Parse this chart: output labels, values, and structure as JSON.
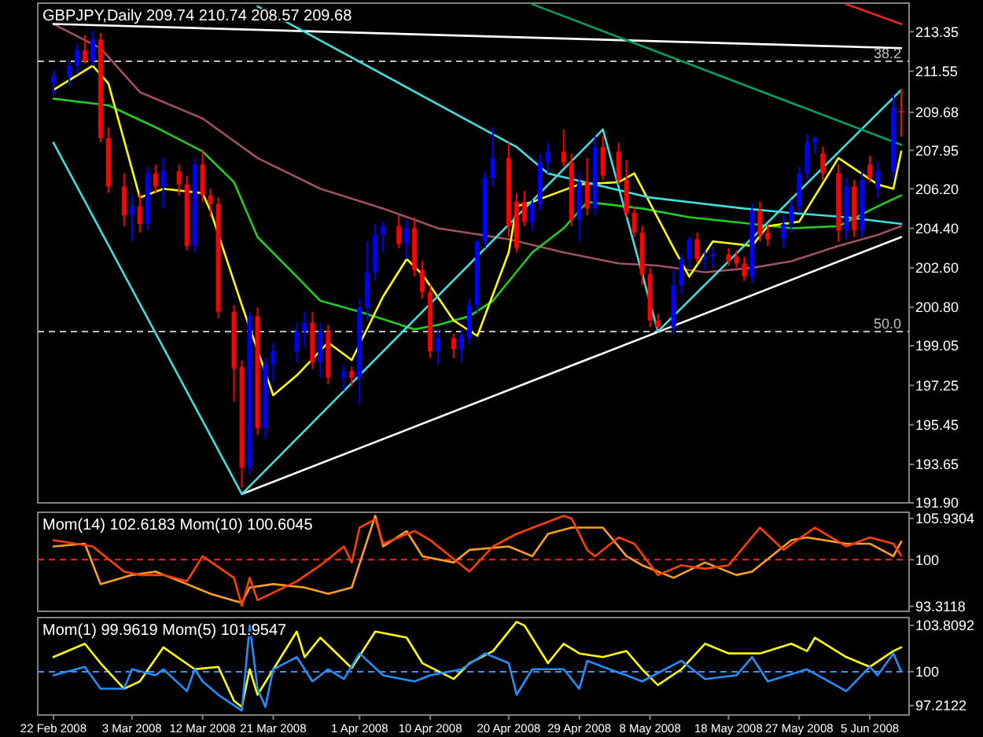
{
  "chart_data": [
    {
      "type": "candlestick",
      "title": "GBPJPY,Daily 209.74 210.74 208.57 209.68",
      "tick_labels": "y",
      "xlim": [
        "2008-02-20",
        "2008-06-10"
      ],
      "ylim": [
        191.9,
        214.65
      ],
      "yticks": [
        213.35,
        211.55,
        209.68,
        207.95,
        {
          "value": 206.2,
          "label": "206.20"
        },
        {
          "value": 204.4,
          "label": "204.40"
        },
        {
          "value": 202.6,
          "label": "202.60"
        },
        {
          "value": 200.8,
          "label": "200.80"
        },
        199.05,
        197.25,
        195.45,
        193.65,
        {
          "value": 191.9,
          "label": "191.90"
        }
      ],
      "ref_lines": [
        {
          "axis": "y",
          "value": 212.0,
          "color": "#c0c0c0",
          "line_style": "dashed"
        },
        {
          "axis": "y",
          "value": 199.7,
          "color": "#c0c0c0",
          "line_style": "dashed"
        }
      ],
      "annotations": [
        {
          "text": "38.2",
          "x": "2008-06-09",
          "y": 212.0
        },
        {
          "text": "50.0",
          "x": "2008-06-09",
          "y": 199.7
        }
      ],
      "x": [
        "2008-02-22",
        "2008-02-24",
        "2008-02-25",
        "2008-02-26",
        "2008-02-27",
        "2008-02-28",
        "2008-02-29",
        "2008-03-02",
        "2008-03-03",
        "2008-03-04",
        "2008-03-05",
        "2008-03-06",
        "2008-03-07",
        "2008-03-09",
        "2008-03-10",
        "2008-03-11",
        "2008-03-12",
        "2008-03-13",
        "2008-03-14",
        "2008-03-16",
        "2008-03-17",
        "2008-03-18",
        "2008-03-19",
        "2008-03-20",
        "2008-03-21",
        "2008-03-24",
        "2008-03-25",
        "2008-03-26",
        "2008-03-27",
        "2008-03-28",
        "2008-03-30",
        "2008-03-31",
        "2008-04-01",
        "2008-04-02",
        "2008-04-03",
        "2008-04-04",
        "2008-04-06",
        "2008-04-07",
        "2008-04-08",
        "2008-04-09",
        "2008-04-10",
        "2008-04-11",
        "2008-04-13",
        "2008-04-14",
        "2008-04-15",
        "2008-04-16",
        "2008-04-17",
        "2008-04-18",
        "2008-04-20",
        "2008-04-21",
        "2008-04-22",
        "2008-04-23",
        "2008-04-24",
        "2008-04-25",
        "2008-04-27",
        "2008-04-28",
        "2008-04-29",
        "2008-04-30",
        "2008-05-01",
        "2008-05-02",
        "2008-05-04",
        "2008-05-05",
        "2008-05-06",
        "2008-05-07",
        "2008-05-08",
        "2008-05-09",
        "2008-05-11",
        "2008-05-12",
        "2008-05-13",
        "2008-05-14",
        "2008-05-15",
        "2008-05-16",
        "2008-05-18",
        "2008-05-19",
        "2008-05-20",
        "2008-05-21",
        "2008-05-22",
        "2008-05-23",
        "2008-05-25",
        "2008-05-26",
        "2008-05-27",
        "2008-05-28",
        "2008-05-29",
        "2008-05-30",
        "2008-06-01",
        "2008-06-02",
        "2008-06-03",
        "2008-06-04",
        "2008-06-05",
        "2008-06-06",
        "2008-06-08",
        "2008-06-09"
      ],
      "ohlc": [
        [
          211.0,
          211.6,
          210.5,
          211.3
        ],
        [
          211.3,
          212.0,
          210.9,
          211.8
        ],
        [
          211.8,
          212.8,
          211.4,
          212.5
        ],
        [
          212.5,
          213.2,
          211.9,
          212.0
        ],
        [
          212.0,
          213.4,
          211.8,
          213.0
        ],
        [
          213.0,
          213.3,
          208.3,
          208.5
        ],
        [
          208.5,
          209.0,
          206.0,
          206.3
        ],
        [
          206.3,
          206.9,
          204.5,
          205.0
        ],
        [
          205.0,
          205.9,
          203.8,
          205.4
        ],
        [
          205.4,
          206.0,
          204.2,
          204.6
        ],
        [
          204.6,
          207.2,
          204.3,
          206.9
        ],
        [
          206.9,
          207.3,
          206.0,
          206.3
        ],
        [
          206.3,
          207.6,
          205.3,
          207.0
        ],
        [
          207.0,
          207.3,
          205.9,
          206.4
        ],
        [
          206.4,
          206.8,
          203.4,
          203.6
        ],
        [
          203.6,
          207.6,
          203.3,
          207.3
        ],
        [
          207.3,
          208.0,
          205.6,
          205.9
        ],
        [
          205.9,
          206.2,
          204.9,
          205.5
        ],
        [
          205.5,
          205.8,
          200.3,
          200.6
        ],
        [
          200.6,
          200.9,
          196.5,
          198.0
        ],
        [
          198.1,
          198.4,
          192.6,
          193.5
        ],
        [
          193.5,
          200.6,
          193.2,
          200.4
        ],
        [
          200.4,
          200.8,
          195.0,
          195.3
        ],
        [
          195.3,
          198.5,
          194.8,
          198.2
        ],
        [
          198.2,
          199.2,
          197.4,
          198.8
        ],
        [
          198.8,
          200.1,
          198.3,
          199.7
        ],
        [
          199.7,
          200.6,
          199.0,
          200.1
        ],
        [
          200.1,
          200.6,
          198.0,
          198.3
        ],
        [
          198.3,
          200.1,
          197.6,
          199.7
        ],
        [
          199.7,
          200.0,
          197.3,
          197.6
        ],
        [
          197.6,
          198.2,
          197.0,
          197.9
        ],
        [
          197.9,
          198.1,
          197.2,
          197.6
        ],
        [
          197.6,
          201.2,
          196.4,
          200.8
        ],
        [
          200.8,
          203.8,
          200.2,
          202.4
        ],
        [
          202.4,
          204.6,
          202.0,
          204.1
        ],
        [
          204.1,
          204.7,
          203.3,
          204.5
        ],
        [
          204.5,
          205.0,
          203.5,
          203.7
        ],
        [
          203.7,
          204.8,
          203.0,
          204.4
        ],
        [
          204.4,
          204.9,
          202.2,
          202.5
        ],
        [
          202.5,
          202.9,
          201.2,
          201.5
        ],
        [
          201.5,
          201.8,
          198.5,
          198.8
        ],
        [
          198.8,
          199.8,
          198.2,
          199.4
        ],
        [
          199.4,
          199.6,
          198.5,
          198.9
        ],
        [
          198.9,
          199.8,
          198.3,
          199.5
        ],
        [
          199.4,
          201.2,
          199.1,
          200.9
        ],
        [
          200.9,
          203.9,
          200.6,
          203.8
        ],
        [
          203.8,
          207.0,
          203.5,
          206.7
        ],
        [
          206.7,
          209.0,
          206.3,
          207.6
        ],
        [
          207.6,
          208.3,
          204.0,
          204.5
        ],
        [
          205.6,
          206.0,
          203.3,
          203.5
        ],
        [
          205.6,
          206.1,
          204.5,
          204.7
        ],
        [
          204.7,
          205.7,
          204.3,
          205.5
        ],
        [
          205.5,
          207.8,
          205.2,
          207.4
        ],
        [
          207.4,
          208.3,
          206.9,
          207.9
        ],
        [
          207.9,
          208.9,
          207.2,
          207.4
        ],
        [
          207.4,
          207.8,
          204.5,
          204.8
        ],
        [
          204.8,
          207.0,
          203.8,
          206.5
        ],
        [
          206.5,
          207.6,
          205.0,
          205.3
        ],
        [
          205.3,
          208.6,
          205.0,
          208.1
        ],
        [
          208.1,
          208.6,
          206.6,
          206.8
        ],
        [
          207.9,
          208.3,
          206.4,
          206.6
        ],
        [
          206.6,
          207.5,
          204.9,
          205.1
        ],
        [
          205.1,
          205.4,
          204.0,
          204.2
        ],
        [
          204.2,
          204.5,
          201.8,
          202.3
        ],
        [
          202.3,
          202.6,
          199.9,
          200.2
        ],
        [
          200.2,
          200.5,
          199.8,
          199.9
        ],
        [
          199.9,
          202.5,
          199.6,
          201.8
        ],
        [
          201.8,
          203.2,
          201.4,
          203.0
        ],
        [
          203.0,
          204.0,
          202.6,
          203.9
        ],
        [
          203.9,
          204.2,
          202.8,
          203.0
        ],
        [
          203.0,
          203.4,
          202.5,
          203.1
        ],
        [
          203.1,
          203.6,
          202.6,
          203.2
        ],
        [
          203.2,
          203.5,
          202.7,
          202.9
        ],
        [
          203.1,
          203.4,
          202.6,
          202.8
        ],
        [
          202.8,
          203.1,
          202.0,
          202.2
        ],
        [
          202.2,
          205.5,
          201.9,
          205.2
        ],
        [
          205.2,
          205.6,
          203.8,
          204.1
        ],
        [
          204.2,
          204.6,
          203.6,
          203.9
        ],
        [
          203.9,
          205.0,
          203.5,
          204.6
        ],
        [
          204.6,
          205.7,
          204.2,
          205.4
        ],
        [
          205.4,
          207.2,
          205.1,
          206.9
        ],
        [
          206.9,
          208.7,
          206.6,
          208.3
        ],
        [
          208.3,
          208.6,
          207.8,
          208.5
        ],
        [
          207.8,
          208.1,
          206.6,
          206.9
        ],
        [
          206.9,
          207.3,
          203.8,
          204.3
        ],
        [
          204.3,
          206.7,
          203.9,
          206.3
        ],
        [
          206.3,
          206.6,
          204.0,
          204.3
        ],
        [
          204.3,
          207.0,
          204.0,
          206.6
        ],
        [
          207.3,
          207.7,
          206.5,
          206.7
        ],
        [
          206.2,
          207.4,
          205.8,
          207.0
        ],
        [
          207.0,
          210.5,
          206.6,
          209.9
        ],
        [
          209.74,
          210.74,
          208.57,
          209.68
        ]
      ],
      "colors": [
        "#0000ff",
        "#0000ff",
        "#0000ff",
        "#ff0000",
        "#0000ff",
        "#ff0000",
        "#ff0000",
        "#ff0000",
        "#0000ff",
        "#ff0000",
        "#0000ff",
        "#ff0000",
        "#0000ff",
        "#ff0000",
        "#ff0000",
        "#0000ff",
        "#ff0000",
        "#ff0000",
        "#ff0000",
        "#ff0000",
        "#ff0000",
        "#0000ff",
        "#ff0000",
        "#0000ff",
        "#0000ff",
        "#0000ff",
        "#0000ff",
        "#ff0000",
        "#0000ff",
        "#ff0000",
        "#0000ff",
        "#ff0000",
        "#0000ff",
        "#0000ff",
        "#0000ff",
        "#0000ff",
        "#ff0000",
        "#0000ff",
        "#ff0000",
        "#ff0000",
        "#ff0000",
        "#0000ff",
        "#ff0000",
        "#0000ff",
        "#0000ff",
        "#0000ff",
        "#0000ff",
        "#0000ff",
        "#ff0000",
        "#ff0000",
        "#ff0000",
        "#0000ff",
        "#0000ff",
        "#0000ff",
        "#ff0000",
        "#ff0000",
        "#0000ff",
        "#ff0000",
        "#0000ff",
        "#ff0000",
        "#ff0000",
        "#ff0000",
        "#ff0000",
        "#ff0000",
        "#ff0000",
        "#ff0000",
        "#0000ff",
        "#0000ff",
        "#0000ff",
        "#ff0000",
        "#0000ff",
        "#0000ff",
        "#ff0000",
        "#ff0000",
        "#ff0000",
        "#0000ff",
        "#ff0000",
        "#ff0000",
        "#0000ff",
        "#0000ff",
        "#0000ff",
        "#0000ff",
        "#0000ff",
        "#ff0000",
        "#ff0000",
        "#0000ff",
        "#ff0000",
        "#0000ff",
        "#ff0000",
        "#0000ff",
        "#0000ff",
        "#ff0000"
      ],
      "series": [
        {
          "type": "line",
          "color": "#a0505f",
          "x": [
            "2008-02-22",
            "2008-02-28",
            "2008-03-04",
            "2008-03-12",
            "2008-03-19",
            "2008-03-27",
            "2008-04-04",
            "2008-04-11",
            "2008-04-20",
            "2008-04-27",
            "2008-05-04",
            "2008-05-09",
            "2008-05-15",
            "2008-05-21",
            "2008-05-26",
            "2008-06-01",
            "2008-06-06",
            "2008-06-09"
          ],
          "values": [
            213.7,
            212.6,
            210.6,
            209.4,
            207.6,
            206.2,
            205.3,
            204.4,
            203.9,
            203.3,
            202.8,
            202.7,
            202.4,
            202.6,
            202.9,
            203.6,
            204.1,
            204.5
          ]
        },
        {
          "type": "line",
          "color": "#20d020",
          "x": [
            "2008-02-22",
            "2008-02-29",
            "2008-03-06",
            "2008-03-12",
            "2008-03-16",
            "2008-03-19",
            "2008-03-24",
            "2008-03-27",
            "2008-04-01",
            "2008-04-08",
            "2008-04-11",
            "2008-04-15",
            "2008-04-18",
            "2008-04-23",
            "2008-04-27",
            "2008-04-30",
            "2008-05-07",
            "2008-05-13",
            "2008-05-21",
            "2008-05-26",
            "2008-06-01",
            "2008-06-06",
            "2008-06-09"
          ],
          "values": [
            210.3,
            210.0,
            209.0,
            207.9,
            206.5,
            204.0,
            202.2,
            201.1,
            200.6,
            199.8,
            200.0,
            200.4,
            201.1,
            203.3,
            204.4,
            205.6,
            205.3,
            204.9,
            204.6,
            204.4,
            204.5,
            205.4,
            205.9
          ]
        },
        {
          "type": "line",
          "color": "#ffff00",
          "x": [
            "2008-02-22",
            "2008-02-27",
            "2008-02-29",
            "2008-03-04",
            "2008-03-07",
            "2008-03-12",
            "2008-03-13",
            "2008-03-17",
            "2008-03-21",
            "2008-03-24",
            "2008-03-28",
            "2008-03-31",
            "2008-04-04",
            "2008-04-07",
            "2008-04-09",
            "2008-04-13",
            "2008-04-16",
            "2008-04-20",
            "2008-04-21",
            "2008-04-23",
            "2008-04-29",
            "2008-05-04",
            "2008-05-06",
            "2008-05-11",
            "2008-05-13",
            "2008-05-16",
            "2008-05-21",
            "2008-05-23",
            "2008-05-27",
            "2008-06-01",
            "2008-06-06",
            "2008-06-08",
            "2008-06-09"
          ],
          "values": [
            210.7,
            211.8,
            211.0,
            205.8,
            206.2,
            206.0,
            205.2,
            200.9,
            196.8,
            197.7,
            199.2,
            198.4,
            201.3,
            203.0,
            202.3,
            200.2,
            199.5,
            203.3,
            205.4,
            205.6,
            206.4,
            206.5,
            206.9,
            203.5,
            202.2,
            203.8,
            203.6,
            204.5,
            204.7,
            207.6,
            206.4,
            206.2,
            207.9
          ]
        },
        {
          "type": "line",
          "color": "#ffffff",
          "x": [
            "2008-03-17",
            "2008-06-09"
          ],
          "values": [
            192.3,
            204.0
          ]
        },
        {
          "type": "line",
          "color": "#ffffff",
          "x": [
            "2008-02-22",
            "2008-06-09"
          ],
          "values": [
            213.7,
            212.6
          ]
        },
        {
          "type": "line",
          "color": "#40e0e0",
          "x": [
            "2008-03-19",
            "2008-04-21",
            "2008-04-25",
            "2008-05-08",
            "2008-05-20",
            "2008-05-26",
            "2008-06-02",
            "2008-06-09"
          ],
          "values": [
            214.5,
            208.1,
            206.9,
            205.8,
            205.3,
            205.1,
            204.9,
            204.6
          ]
        },
        {
          "type": "line",
          "color": "#40e0e0",
          "x": [
            "2008-02-22",
            "2008-03-17",
            "2008-05-02",
            "2008-05-09",
            "2008-06-09"
          ],
          "values": [
            208.3,
            192.3,
            208.9,
            199.7,
            210.7
          ]
        },
        {
          "type": "line",
          "color": "#00a060",
          "x": [
            "2008-04-23",
            "2008-06-09"
          ],
          "values": [
            214.6,
            208.2
          ]
        },
        {
          "type": "line",
          "color": "#ff2020",
          "x": [
            "2008-06-02",
            "2008-06-09"
          ],
          "values": [
            214.6,
            213.7
          ]
        }
      ]
    },
    {
      "type": "line",
      "title": "Mom(14) 102.6183 Mom(10) 100.6045",
      "tick_labels": "y",
      "xlim": [
        "2008-02-20",
        "2008-06-10"
      ],
      "ylim": [
        92.6,
        106.8
      ],
      "yticks": [
        105.9304,
        100,
        93.3118
      ],
      "ref_lines": [
        {
          "axis": "y",
          "value": 100,
          "color": "#ff2020",
          "line_style": "dashed"
        }
      ],
      "series": [
        {
          "color": "#ffa020",
          "x": [
            "2008-02-22",
            "2008-02-26",
            "2008-02-28",
            "2008-03-03",
            "2008-03-06",
            "2008-03-10",
            "2008-03-13",
            "2008-03-17",
            "2008-03-18",
            "2008-03-21",
            "2008-03-25",
            "2008-03-28",
            "2008-03-31",
            "2008-04-03",
            "2008-04-04",
            "2008-04-07",
            "2008-04-09",
            "2008-04-13",
            "2008-04-15",
            "2008-04-20",
            "2008-04-23",
            "2008-04-25",
            "2008-04-28",
            "2008-05-02",
            "2008-05-05",
            "2008-05-07",
            "2008-05-11",
            "2008-05-15",
            "2008-05-19",
            "2008-05-21",
            "2008-05-26",
            "2008-05-28",
            "2008-06-02",
            "2008-06-05",
            "2008-06-08",
            "2008-06-09"
          ],
          "values": [
            101.9,
            102.3,
            96.5,
            97.8,
            98.3,
            96.5,
            95.1,
            93.8,
            96.0,
            96.5,
            96.0,
            95.1,
            96.0,
            106.3,
            101.9,
            104.1,
            100.5,
            99.6,
            101.4,
            101.9,
            100.5,
            103.7,
            104.6,
            104.6,
            100.5,
            99.2,
            97.4,
            99.6,
            97.8,
            98.3,
            102.8,
            103.2,
            102.3,
            102.3,
            100.5,
            102.6
          ]
        },
        {
          "color": "#ff4000",
          "x": [
            "2008-02-22",
            "2008-02-27",
            "2008-03-02",
            "2008-03-04",
            "2008-03-07",
            "2008-03-10",
            "2008-03-12",
            "2008-03-16",
            "2008-03-17",
            "2008-03-18",
            "2008-03-19",
            "2008-03-24",
            "2008-03-27",
            "2008-03-30",
            "2008-03-31",
            "2008-04-01",
            "2008-04-03",
            "2008-04-04",
            "2008-04-08",
            "2008-04-10",
            "2008-04-15",
            "2008-04-18",
            "2008-04-21",
            "2008-04-27",
            "2008-04-28",
            "2008-04-30",
            "2008-05-01",
            "2008-05-04",
            "2008-05-06",
            "2008-05-09",
            "2008-05-12",
            "2008-05-15",
            "2008-05-18",
            "2008-05-22",
            "2008-05-25",
            "2008-05-29",
            "2008-06-02",
            "2008-06-05",
            "2008-06-08",
            "2008-06-09"
          ],
          "values": [
            102.8,
            101.9,
            98.3,
            97.8,
            97.8,
            96.9,
            100.5,
            97.4,
            93.4,
            97.4,
            94.2,
            96.9,
            99.2,
            101.9,
            99.6,
            104.6,
            105.8,
            102.3,
            104.1,
            102.8,
            98.3,
            101.9,
            103.7,
            106.3,
            105.9,
            101.4,
            100.5,
            103.2,
            102.3,
            97.8,
            99.2,
            98.7,
            99.2,
            104.6,
            101.4,
            104.6,
            101.9,
            103.2,
            102.3,
            100.6
          ]
        }
      ]
    },
    {
      "type": "line",
      "title": "Mom(1) 99.9619 Mom(5) 101.9547",
      "xlim": [
        "2008-02-20",
        "2008-06-10"
      ],
      "ylim": [
        96.44,
        104.45
      ],
      "yticks": [
        103.8092,
        100,
        97.2122
      ],
      "xticks": [
        {
          "value": "2008-02-22",
          "label": "22 Feb 2008"
        },
        {
          "value": "2008-03-03",
          "label": "3 Mar 2008"
        },
        {
          "value": "2008-03-12",
          "label": "12 Mar 2008"
        },
        {
          "value": "2008-03-21",
          "label": "21 Mar 2008"
        },
        {
          "value": "2008-04-01",
          "label": "1 Apr 2008"
        },
        {
          "value": "2008-04-10",
          "label": "10 Apr 2008"
        },
        {
          "value": "2008-04-20",
          "label": "20 Apr 2008"
        },
        {
          "value": "2008-04-29",
          "label": "29 Apr 2008"
        },
        {
          "value": "2008-05-08",
          "label": "8 May 2008"
        },
        {
          "value": "2008-05-18",
          "label": "18 May 2008"
        },
        {
          "value": "2008-05-27",
          "label": "27 May 2008"
        },
        {
          "value": "2008-06-05",
          "label": "5 Jun 2008"
        }
      ],
      "ref_lines": [
        {
          "axis": "y",
          "value": 100,
          "color": "#4090ff",
          "line_style": "dashed"
        }
      ],
      "series": [
        {
          "color": "#ffff00",
          "x": [
            "2008-02-22",
            "2008-02-26",
            "2008-02-28",
            "2008-03-02",
            "2008-03-04",
            "2008-03-07",
            "2008-03-11",
            "2008-03-14",
            "2008-03-16",
            "2008-03-17",
            "2008-03-18",
            "2008-03-19",
            "2008-03-24",
            "2008-03-25",
            "2008-03-27",
            "2008-03-31",
            "2008-04-03",
            "2008-04-07",
            "2008-04-09",
            "2008-04-13",
            "2008-04-15",
            "2008-04-18",
            "2008-04-21",
            "2008-04-22",
            "2008-04-25",
            "2008-04-27",
            "2008-04-29",
            "2008-05-02",
            "2008-05-05",
            "2008-05-07",
            "2008-05-09",
            "2008-05-12",
            "2008-05-15",
            "2008-05-18",
            "2008-05-22",
            "2008-05-26",
            "2008-05-28",
            "2008-05-29",
            "2008-06-02",
            "2008-06-05",
            "2008-06-08",
            "2008-06-09"
          ],
          "values": [
            101.2,
            102.3,
            100.7,
            98.6,
            99.2,
            102.0,
            100.2,
            100.4,
            97.6,
            97.1,
            100.2,
            98.1,
            103.3,
            101.2,
            102.8,
            100.3,
            103.3,
            102.8,
            100.7,
            99.4,
            100.7,
            101.7,
            104.1,
            103.8,
            100.7,
            102.3,
            101.5,
            101.2,
            101.7,
            100.2,
            98.9,
            100.2,
            102.3,
            101.5,
            101.5,
            102.3,
            101.7,
            102.8,
            101.2,
            100.4,
            101.7,
            102.0
          ]
        },
        {
          "color": "#2090ff",
          "x": [
            "2008-02-22",
            "2008-02-26",
            "2008-02-28",
            "2008-03-02",
            "2008-03-03",
            "2008-03-06",
            "2008-03-07",
            "2008-03-10",
            "2008-03-11",
            "2008-03-12",
            "2008-03-14",
            "2008-03-17",
            "2008-03-18",
            "2008-03-19",
            "2008-03-20",
            "2008-03-21",
            "2008-03-24",
            "2008-03-26",
            "2008-03-28",
            "2008-03-30",
            "2008-04-01",
            "2008-04-04",
            "2008-04-08",
            "2008-04-10",
            "2008-04-14",
            "2008-04-17",
            "2008-04-20",
            "2008-04-21",
            "2008-04-23",
            "2008-04-27",
            "2008-04-29",
            "2008-04-30",
            "2008-05-02",
            "2008-05-05",
            "2008-05-07",
            "2008-05-12",
            "2008-05-15",
            "2008-05-19",
            "2008-05-21",
            "2008-05-23",
            "2008-05-28",
            "2008-06-02",
            "2008-06-05",
            "2008-06-06",
            "2008-06-08",
            "2008-06-09"
          ],
          "values": [
            99.7,
            100.4,
            98.6,
            98.6,
            100.2,
            99.7,
            100.2,
            98.4,
            100.2,
            99.2,
            98.1,
            96.8,
            103.8,
            98.6,
            97.1,
            100.2,
            101.2,
            99.2,
            100.2,
            99.4,
            101.5,
            99.7,
            99.2,
            99.7,
            100.2,
            101.5,
            100.7,
            98.1,
            100.2,
            100.2,
            98.6,
            100.9,
            100.4,
            99.7,
            99.2,
            100.9,
            99.4,
            99.7,
            101.2,
            99.2,
            100.2,
            98.4,
            100.4,
            99.7,
            101.5,
            100.0
          ]
        }
      ]
    }
  ]
}
